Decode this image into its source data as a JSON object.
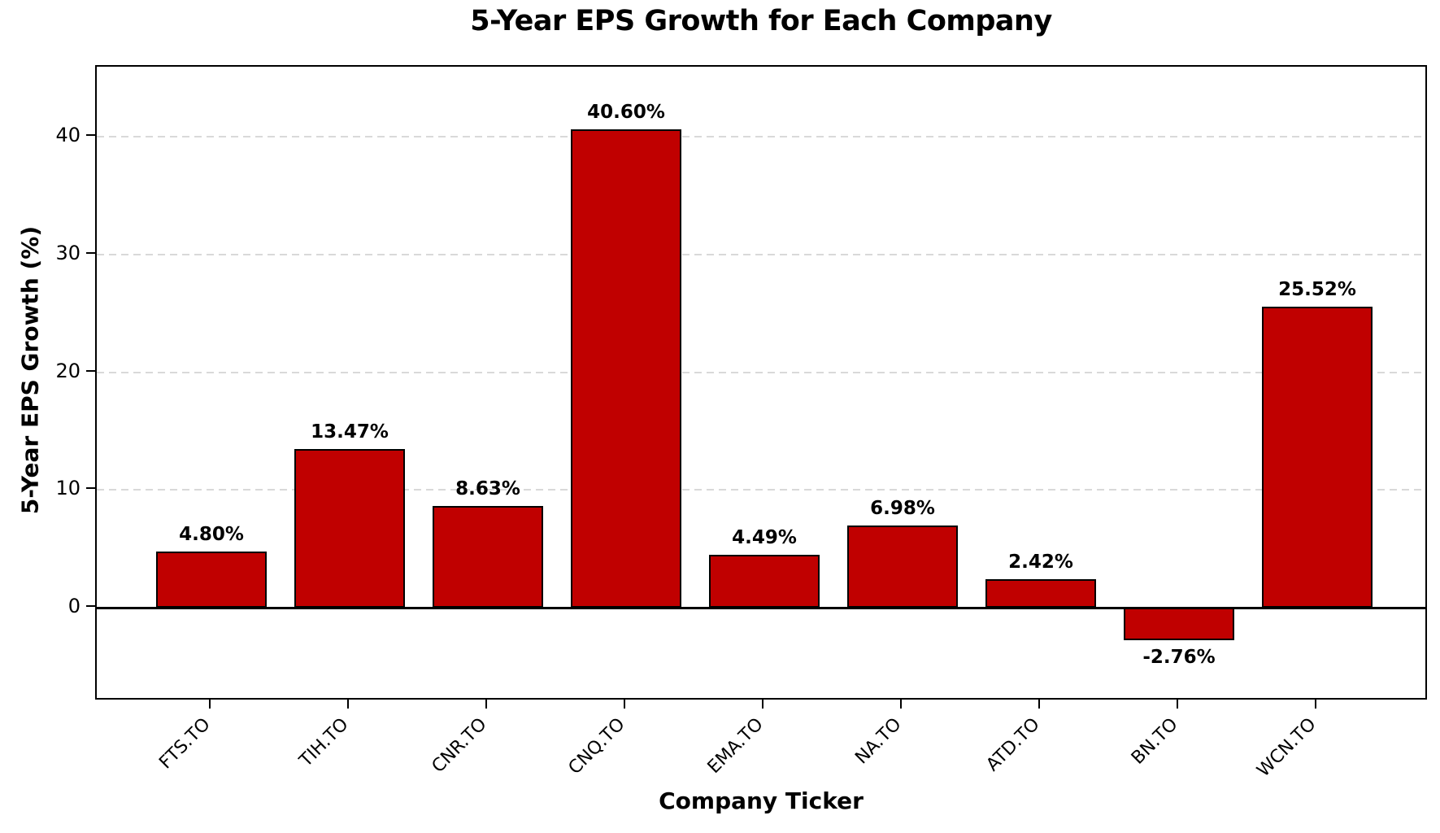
{
  "chart_data": {
    "type": "bar",
    "title": "5-Year EPS Growth for Each Company",
    "xlabel": "Company Ticker",
    "ylabel": "5-Year EPS Growth (%)",
    "categories": [
      "FTS.TO",
      "TIH.TO",
      "CNR.TO",
      "CNQ.TO",
      "EMA.TO",
      "NA.TO",
      "ATD.TO",
      "BN.TO",
      "WCN.TO"
    ],
    "values": [
      4.8,
      13.47,
      8.63,
      40.6,
      4.49,
      6.98,
      2.42,
      -2.76,
      25.52
    ],
    "value_labels": [
      "4.80%",
      "13.47%",
      "8.63%",
      "40.60%",
      "4.49%",
      "6.98%",
      "2.42%",
      "-2.76%",
      "25.52%"
    ],
    "yticks": [
      0,
      10,
      20,
      30,
      40
    ],
    "ytick_labels": [
      "0",
      "10",
      "20",
      "30",
      "40"
    ],
    "ylim": [
      -7.9,
      45.9
    ],
    "grid": "horizontal-dashed",
    "legend": "none",
    "colors": {
      "bar_fill": "#c00000",
      "bar_edge": "#000000",
      "gridline": "#d9d9d9",
      "axis": "#000000",
      "text": "#000000",
      "background": "#ffffff"
    }
  }
}
